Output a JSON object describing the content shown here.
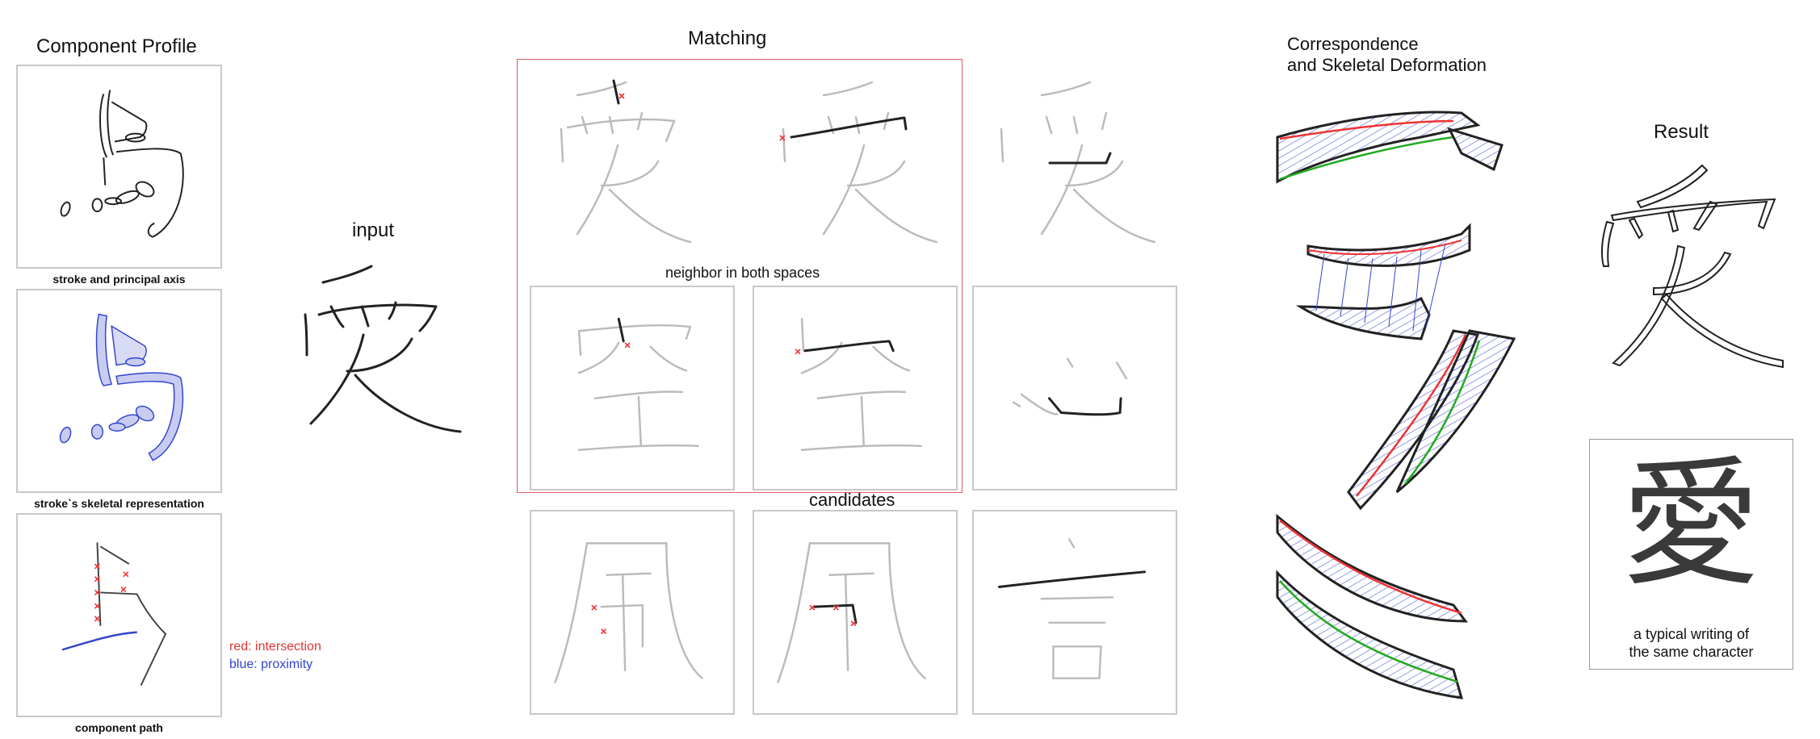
{
  "profile": {
    "title": "Component Profile",
    "captions": [
      "stroke and principal axis",
      "stroke`s skeletal representation",
      "component path"
    ],
    "legend": {
      "red": "red: intersection",
      "blue": "blue: proximity"
    },
    "colors": {
      "intersection": "#e33333",
      "proximity": "#3344cc"
    }
  },
  "input": {
    "title": "input",
    "character": "愛"
  },
  "matching": {
    "title": "Matching",
    "neighbor_label": "neighbor in both spaces",
    "candidates_label": "candidates",
    "frame_color": "#e35a5a",
    "top_characters": [
      "愛",
      "愛",
      "愛"
    ],
    "mid_characters": [
      "空",
      "空",
      "心"
    ],
    "bottom_characters": [
      "風",
      "風",
      "言"
    ]
  },
  "deformation": {
    "title_line1": "Correspondence",
    "title_line2": "and Skeletal Deformation"
  },
  "result": {
    "title": "Result",
    "character": "愛",
    "typical_character": "愛",
    "caption_line1": "a typical writing of",
    "caption_line2": "the same character"
  }
}
